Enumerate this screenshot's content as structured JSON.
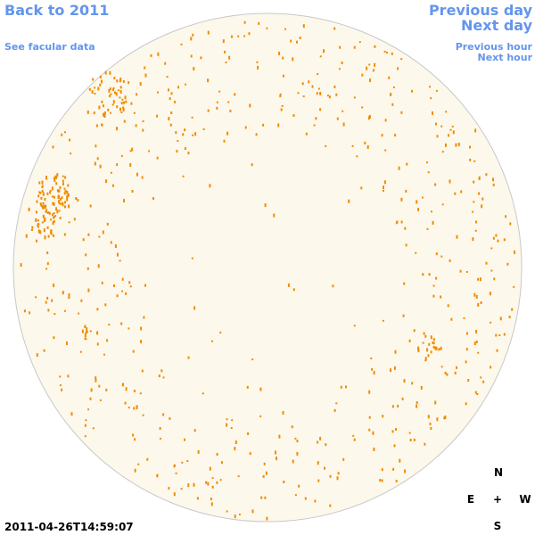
{
  "nav": {
    "back_year": "Back to 2011",
    "facular_data": "See facular data",
    "previous_day": "Previous day",
    "next_day": "Next day",
    "previous_hour": "Previous hour",
    "next_hour": "Next hour"
  },
  "timestamp": "2011-04-26T14:59:07",
  "compass": {
    "north": "N",
    "east": "E",
    "center": "+",
    "west": "W",
    "south": "S"
  }
}
